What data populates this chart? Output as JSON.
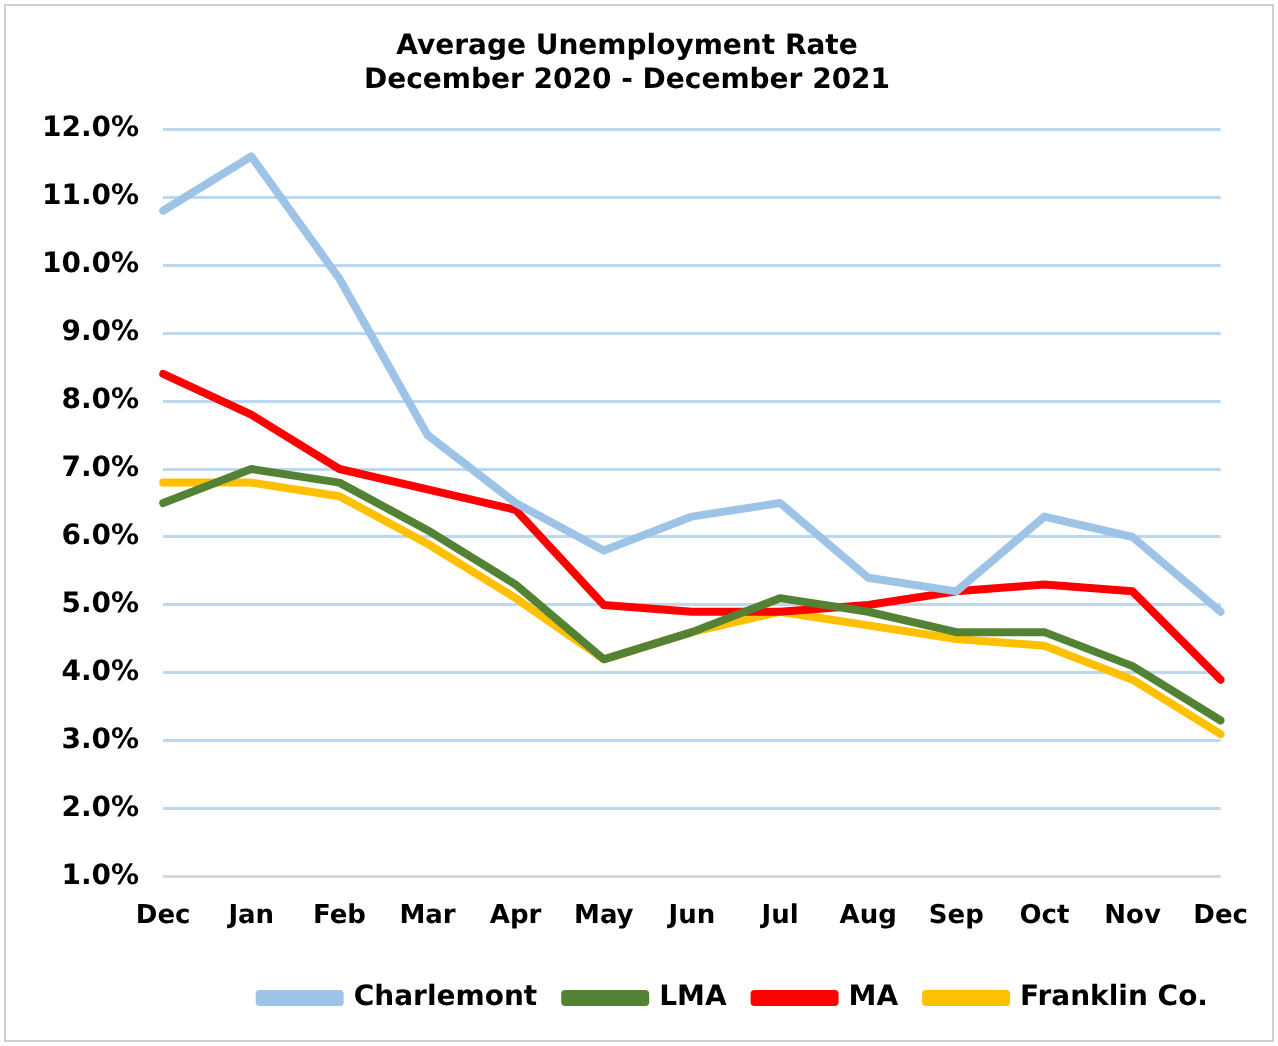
{
  "chart_data": {
    "type": "line",
    "title": [
      "Average Unemployment Rate",
      "December 2020 - December 2021"
    ],
    "categories": [
      "Dec",
      "Jan",
      "Feb",
      "Mar",
      "Apr",
      "May",
      "Jun",
      "Jul",
      "Aug",
      "Sep",
      "Oct",
      "Nov",
      "Dec"
    ],
    "series": [
      {
        "name": "Charlemont",
        "color": "#9dc3e6",
        "values": [
          10.8,
          11.6,
          9.8,
          7.5,
          6.5,
          5.8,
          6.3,
          6.5,
          5.4,
          5.2,
          6.3,
          6.0,
          4.9
        ]
      },
      {
        "name": "LMA",
        "color": "#548235",
        "values": [
          6.5,
          7.0,
          6.8,
          6.1,
          5.3,
          4.2,
          4.6,
          5.1,
          4.9,
          4.6,
          4.6,
          4.1,
          3.3
        ]
      },
      {
        "name": "MA",
        "color": "#ff0000",
        "values": [
          8.4,
          7.8,
          7.0,
          6.7,
          6.4,
          5.0,
          4.9,
          4.9,
          5.0,
          5.2,
          5.3,
          5.2,
          3.9
        ]
      },
      {
        "name": "Franklin Co.",
        "color": "#ffc000",
        "values": [
          6.8,
          6.8,
          6.6,
          5.9,
          5.1,
          4.2,
          4.6,
          4.9,
          4.7,
          4.5,
          4.4,
          3.9,
          3.1
        ]
      }
    ],
    "ylim": [
      1,
      12
    ],
    "yticks": [
      {
        "value": 1,
        "label": "1.0%"
      },
      {
        "value": 2,
        "label": "2.0%"
      },
      {
        "value": 3,
        "label": "3.0%"
      },
      {
        "value": 4,
        "label": "4.0%"
      },
      {
        "value": 5,
        "label": "5.0%"
      },
      {
        "value": 6,
        "label": "6.0%"
      },
      {
        "value": 7,
        "label": "7.0%"
      },
      {
        "value": 8,
        "label": "8.0%"
      },
      {
        "value": 9,
        "label": "9.0%"
      },
      {
        "value": 10,
        "label": "10.0%"
      },
      {
        "value": 11,
        "label": "11.0%"
      },
      {
        "value": 12,
        "label": "12.0%"
      }
    ],
    "grid": "y",
    "legend": "bottom",
    "marker": "none",
    "line_style": "solid"
  }
}
